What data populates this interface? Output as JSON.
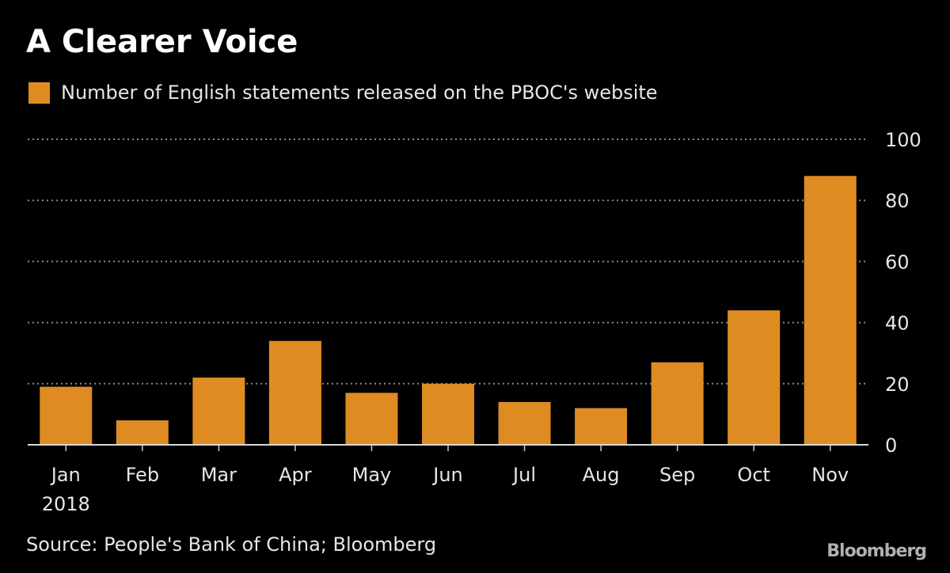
{
  "chart_data": {
    "type": "bar",
    "title": "A Clearer Voice",
    "legend": [
      "Number of English statements released on the PBOC's website"
    ],
    "legend_position": "top-left",
    "categories": [
      "Jan",
      "Feb",
      "Mar",
      "Apr",
      "May",
      "Jun",
      "Jul",
      "Aug",
      "Sep",
      "Oct",
      "Nov"
    ],
    "year_label": "2018",
    "series": [
      {
        "name": "Number of English statements released on the PBOC's website",
        "values": [
          19,
          8,
          22,
          34,
          17,
          20,
          14,
          12,
          27,
          44,
          88
        ]
      }
    ],
    "ylim": [
      0,
      100
    ],
    "yticks": [
      0,
      20,
      40,
      60,
      80,
      100
    ],
    "y_axis_side": "right",
    "grid": true,
    "colors": {
      "bar": "#DE8C22",
      "background": "#000000",
      "grid": "#8a8a8a",
      "text": "#e6e6e6"
    },
    "source": "Source: People's Bank of China; Bloomberg",
    "logo": "Bloomberg"
  }
}
